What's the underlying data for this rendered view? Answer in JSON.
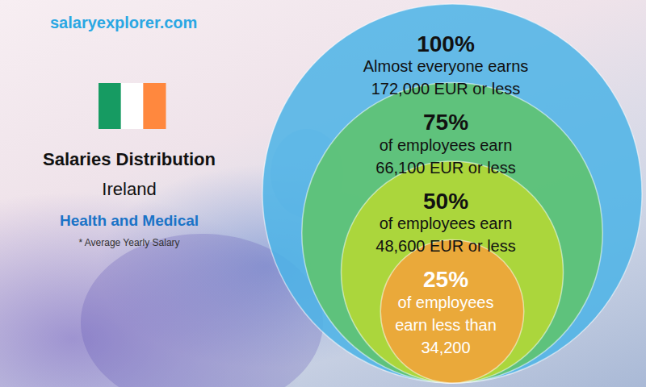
{
  "chart_data": {
    "type": "nested_circles",
    "source": "salaryexplorer.com",
    "title": "Salaries Distribution",
    "subtitle": "Ireland",
    "category": "Health and Medical",
    "note": "* Average Yearly Salary",
    "circles": [
      {
        "percent": 100,
        "percent_label": "100%",
        "lines": [
          "Almost everyone earns",
          "172,000 EUR or less"
        ],
        "color": "#4db3e6"
      },
      {
        "percent": 75,
        "percent_label": "75%",
        "lines": [
          "of employees earn",
          "66,100 EUR or less"
        ],
        "color": "#5ec46a"
      },
      {
        "percent": 50,
        "percent_label": "50%",
        "lines": [
          "of employees earn",
          "48,600 EUR or less"
        ],
        "color": "#b8d832"
      },
      {
        "percent": 25,
        "percent_label": "25%",
        "lines": [
          "of employees",
          "earn less than",
          "34,200"
        ],
        "color": "#f5a23a"
      }
    ]
  }
}
